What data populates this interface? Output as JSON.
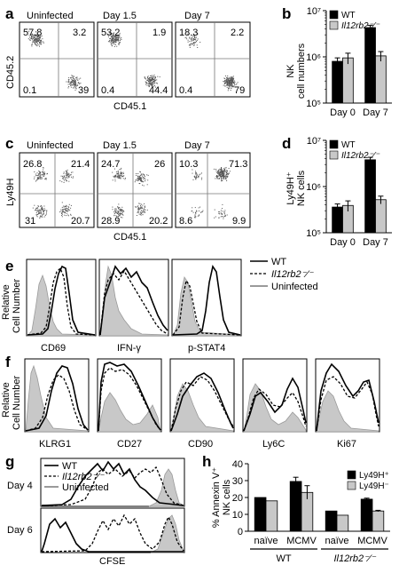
{
  "panel_letters": [
    "a",
    "b",
    "c",
    "d",
    "e",
    "f",
    "g",
    "h"
  ],
  "panel_a": {
    "plots": [
      {
        "title": "Uninfected",
        "quadrants": [
          "57.8",
          "3.2",
          "0.1",
          "39"
        ]
      },
      {
        "title": "Day 1.5",
        "quadrants": [
          "53.2",
          "1.9",
          "0.4",
          "44.4"
        ]
      },
      {
        "title": "Day 7",
        "quadrants": [
          "18.3",
          "2.2",
          "0.4",
          "79"
        ]
      }
    ],
    "ylabel": "CD45.2",
    "xlabel": "CD45.1"
  },
  "panel_c": {
    "plots": [
      {
        "title": "Uninfected",
        "quadrants": [
          "26.8",
          "21.4",
          "31",
          "20.7"
        ]
      },
      {
        "title": "Day 1.5",
        "quadrants": [
          "24.7",
          "26",
          "28.9",
          "20.2"
        ]
      },
      {
        "title": "Day 7",
        "quadrants": [
          "10.3",
          "71.3",
          "8.6",
          "9.9"
        ]
      }
    ],
    "ylabel": "Ly49H",
    "xlabel": "CD45.1"
  },
  "panel_e": {
    "ylabel_line1": "Relative",
    "ylabel_line2": "Cell Number",
    "plots": [
      "CD69",
      "IFN-γ",
      "p-STAT4"
    ],
    "legend": [
      "WT",
      "Il12rb2⁻⁄⁻",
      "Uninfected"
    ]
  },
  "panel_f": {
    "ylabel_line1": "Relative",
    "ylabel_line2": "Cell Number",
    "plots": [
      "KLRG1",
      "CD27",
      "CD90",
      "Ly6C",
      "Ki67"
    ]
  },
  "panel_g": {
    "rows": [
      "Day 4",
      "Day 6"
    ],
    "xlabel": "CFSE",
    "legend": [
      "WT",
      "Il12rb2⁻⁄⁻",
      "Uninfected"
    ]
  },
  "chart_data": [
    {
      "id": "b",
      "type": "bar",
      "ylabel": "NK cell numbers",
      "yscale": "log",
      "ylim": [
        100000,
        10000000
      ],
      "ytick_labels": [
        "10⁵",
        "10⁶",
        "10⁷"
      ],
      "categories": [
        "Day 0",
        "Day 7"
      ],
      "series": [
        {
          "name": "WT",
          "color": "#000000",
          "values": [
            800000,
            4300000
          ],
          "err": [
            150000,
            500000
          ]
        },
        {
          "name": "Il12rb2⁻⁄⁻",
          "color": "#c8c8c8",
          "values": [
            950000,
            1050000
          ],
          "err": [
            250000,
            250000
          ]
        }
      ],
      "legend": "top-left"
    },
    {
      "id": "d",
      "type": "bar",
      "ylabel_line1": "Ly49H⁺",
      "ylabel_line2": "NK cells",
      "yscale": "log",
      "ylim": [
        100000,
        10000000
      ],
      "ytick_labels": [
        "10⁵",
        "10⁶",
        "10⁷"
      ],
      "categories": [
        "Day 0",
        "Day 7"
      ],
      "series": [
        {
          "name": "WT",
          "color": "#000000",
          "values": [
            360000,
            3800000
          ],
          "err": [
            60000,
            500000
          ]
        },
        {
          "name": "Il12rb2⁻⁄⁻",
          "color": "#c8c8c8",
          "values": [
            390000,
            520000
          ],
          "err": [
            100000,
            100000
          ]
        }
      ],
      "legend": "top-left"
    },
    {
      "id": "h",
      "type": "bar",
      "ylabel_line1": "% Annexin V⁺",
      "ylabel_line2": "NK cells",
      "ylim": [
        0,
        40
      ],
      "yticks": [
        0,
        10,
        20,
        30,
        40
      ],
      "categories": [
        "naïve",
        "MCMV",
        "naïve",
        "MCMV"
      ],
      "groups": [
        "WT",
        "Il12rb2⁻⁄⁻"
      ],
      "series": [
        {
          "name": "Ly49H⁺",
          "color": "#000000",
          "values": [
            20,
            29.5,
            12,
            19
          ],
          "err": [
            0,
            2.5,
            0,
            0.6
          ]
        },
        {
          "name": "Ly49H⁻",
          "color": "#c8c8c8",
          "values": [
            18,
            23,
            9.5,
            12
          ],
          "err": [
            0,
            4,
            0,
            0.4
          ]
        }
      ],
      "legend": "top-right"
    }
  ]
}
